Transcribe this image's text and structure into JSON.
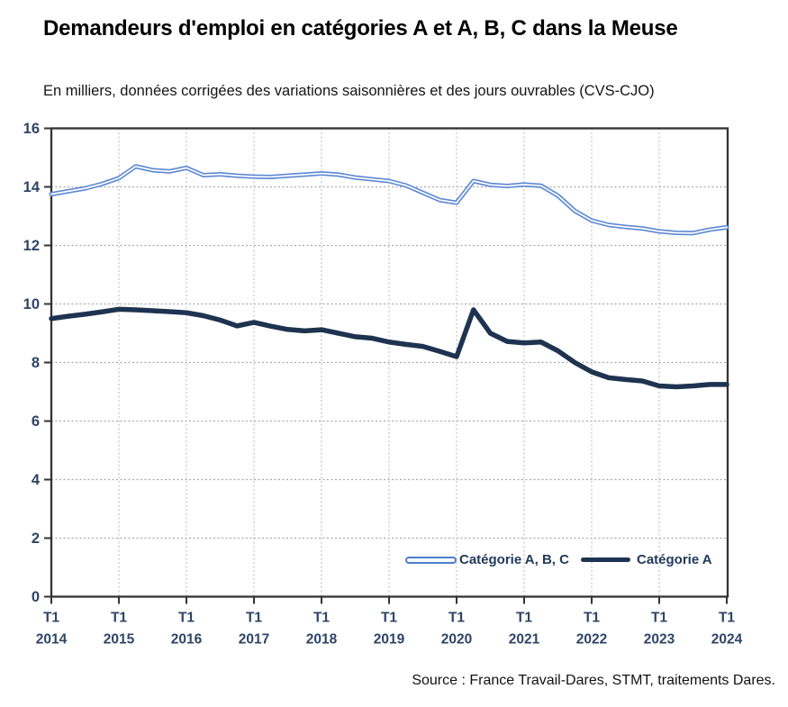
{
  "title": "Demandeurs d'emploi en catégories A et A, B, C dans la Meuse",
  "subtitle": "En milliers, données corrigées des variations saisonnières et des jours ouvrables (CVS-CJO)",
  "source": "Source : France Travail-Dares, STMT, traitements Dares.",
  "colors": {
    "series_abc": "#5C89D4",
    "series_abc_core": "#FFFFFF",
    "series_a": "#1E3350",
    "axis_text": "#2E4465",
    "plot_border": "#333333",
    "gridline_h": "#A8A8A8",
    "gridline_v": "#C4C4C4",
    "legend_abc_border": "#4E7FCA",
    "legend_text": "#22395C"
  },
  "chart_data": {
    "type": "line",
    "title": "Demandeurs d'emploi en catégories A et A, B, C dans la Meuse",
    "subtitle": "En milliers, données corrigées des variations saisonnières et des jours ouvrables (CVS-CJO)",
    "x_tick_prefix": "T1",
    "x_years": [
      "2014",
      "2015",
      "2016",
      "2017",
      "2018",
      "2019",
      "2020",
      "2021",
      "2022",
      "2023",
      "2024"
    ],
    "x_frequency": "quarterly, T1 2014 to T1 2024",
    "y_ticks": [
      0,
      2,
      4,
      6,
      8,
      10,
      12,
      14,
      16
    ],
    "ylim": [
      0,
      16
    ],
    "grid": "dashed",
    "legend_position": "inside-bottom-right",
    "series": [
      {
        "name": "Catégorie A, B, C",
        "style": "double-line",
        "values": [
          13.75,
          13.85,
          13.95,
          14.1,
          14.3,
          14.7,
          14.57,
          14.53,
          14.65,
          14.4,
          14.43,
          14.38,
          14.35,
          14.34,
          14.38,
          14.42,
          14.46,
          14.42,
          14.32,
          14.26,
          14.2,
          14.05,
          13.8,
          13.55,
          13.46,
          14.2,
          14.07,
          14.03,
          14.08,
          14.04,
          13.7,
          13.18,
          12.85,
          12.7,
          12.63,
          12.58,
          12.48,
          12.43,
          12.42,
          12.54,
          12.62
        ]
      },
      {
        "name": "Catégorie A",
        "style": "solid-thick",
        "values": [
          9.5,
          9.58,
          9.65,
          9.73,
          9.82,
          9.8,
          9.77,
          9.74,
          9.7,
          9.6,
          9.45,
          9.25,
          9.37,
          9.24,
          9.13,
          9.08,
          9.12,
          9.0,
          8.88,
          8.83,
          8.7,
          8.62,
          8.55,
          8.38,
          8.2,
          9.8,
          9.0,
          8.72,
          8.67,
          8.7,
          8.4,
          8.0,
          7.68,
          7.48,
          7.42,
          7.37,
          7.2,
          7.17,
          7.2,
          7.25,
          7.25
        ]
      }
    ]
  }
}
